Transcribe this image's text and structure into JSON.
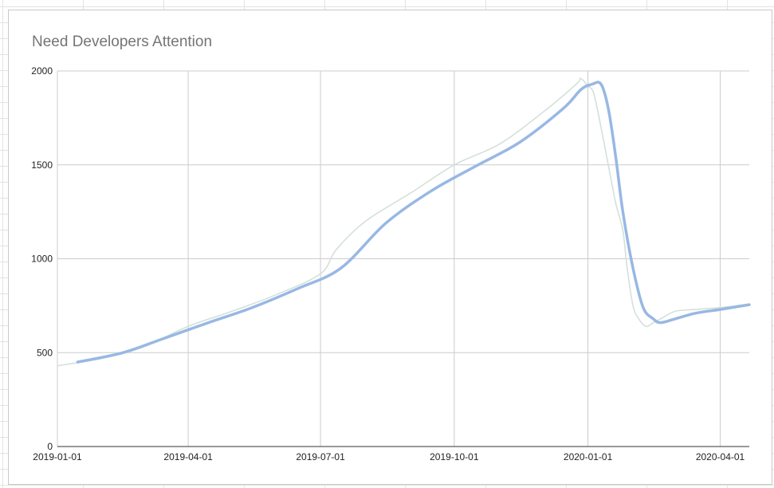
{
  "chart_data": {
    "type": "line",
    "title": "Need Developers Attention",
    "xlabel": "",
    "ylabel": "",
    "x_ticks": [
      "2019-01-01",
      "2019-04-01",
      "2019-07-01",
      "2019-10-01",
      "2020-01-01",
      "2020-04-01"
    ],
    "y_ticks": [
      0,
      500,
      1000,
      1500,
      2000
    ],
    "ylim": [
      0,
      2000
    ],
    "xlim": [
      "2019-01-01",
      "2020-04-21"
    ],
    "grid": true,
    "legend": "none",
    "series": [
      {
        "color": "#d3e0dc",
        "x": [
          "2019-01-01",
          "2019-02-01",
          "2019-03-01",
          "2019-04-01",
          "2019-05-01",
          "2019-06-01",
          "2019-07-01",
          "2019-07-12",
          "2019-08-01",
          "2019-09-01",
          "2019-10-01",
          "2019-11-01",
          "2019-12-01",
          "2019-12-24",
          "2019-12-27",
          "2020-01-01",
          "2020-01-05",
          "2020-01-10",
          "2020-01-15",
          "2020-01-20",
          "2020-01-25",
          "2020-01-28",
          "2020-02-01",
          "2020-02-05",
          "2020-02-10",
          "2020-02-15",
          "2020-02-20",
          "2020-03-01",
          "2020-03-15",
          "2020-04-01",
          "2020-04-21"
        ],
        "values": [
          430,
          470,
          530,
          640,
          720,
          810,
          920,
          1050,
          1200,
          1350,
          1500,
          1610,
          1780,
          1930,
          1960,
          1920,
          1880,
          1700,
          1500,
          1300,
          1150,
          950,
          750,
          680,
          640,
          660,
          680,
          720,
          730,
          740,
          760
        ]
      },
      {
        "color": "#98b8e3",
        "x": [
          "2019-01-15",
          "2019-02-15",
          "2019-03-15",
          "2019-04-15",
          "2019-05-15",
          "2019-06-15",
          "2019-07-15",
          "2019-08-15",
          "2019-09-15",
          "2019-10-15",
          "2019-11-15",
          "2019-12-15",
          "2019-12-27",
          "2020-01-04",
          "2020-01-10",
          "2020-01-15",
          "2020-01-20",
          "2020-01-25",
          "2020-02-01",
          "2020-02-08",
          "2020-02-15",
          "2020-02-20",
          "2020-03-01",
          "2020-03-15",
          "2020-04-01",
          "2020-04-21"
        ],
        "values": [
          450,
          500,
          575,
          660,
          740,
          840,
          950,
          1190,
          1360,
          1490,
          1620,
          1800,
          1900,
          1930,
          1930,
          1800,
          1550,
          1250,
          950,
          740,
          680,
          660,
          680,
          710,
          730,
          755
        ]
      }
    ]
  }
}
